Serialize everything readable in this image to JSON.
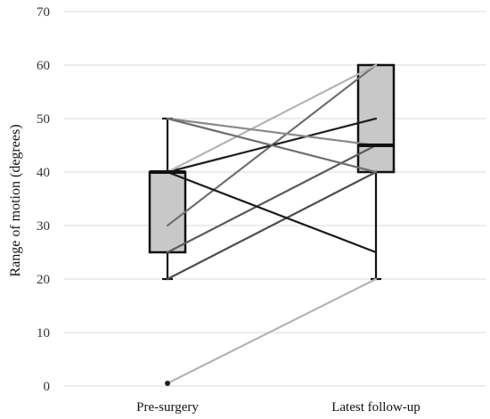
{
  "chart_data": {
    "type": "box",
    "title": "",
    "xlabel": "",
    "ylabel": "Range of motion (degrees)",
    "ylim": [
      0,
      70
    ],
    "yticks": [
      0,
      10,
      20,
      30,
      40,
      50,
      60,
      70
    ],
    "grid": true,
    "categories": [
      "Pre-surgery",
      "Latest follow-up"
    ],
    "boxes": [
      {
        "category": "Pre-surgery",
        "whisker_low": 20,
        "q1": 25,
        "median": 40,
        "q3": 40,
        "whisker_high": 50,
        "outliers": [
          0.5
        ]
      },
      {
        "category": "Latest follow-up",
        "whisker_low": 20,
        "q1": 40,
        "median": 45,
        "q3": 60,
        "whisker_high": 60,
        "outliers": []
      }
    ],
    "paired_lines": [
      {
        "pre": 0.5,
        "post": 20,
        "color": "#b4b4b4"
      },
      {
        "pre": 20,
        "post": 40,
        "color": "#4d4d4d"
      },
      {
        "pre": 25,
        "post": 45,
        "color": "#5a5a5a"
      },
      {
        "pre": 30,
        "post": 60,
        "color": "#707070"
      },
      {
        "pre": 40,
        "post": 25,
        "color": "#1a1a1a"
      },
      {
        "pre": 40,
        "post": 50,
        "color": "#1f1f1f"
      },
      {
        "pre": 40,
        "post": 60,
        "color": "#b4b4b4"
      },
      {
        "pre": 50,
        "post": 45,
        "color": "#8a8a8a"
      },
      {
        "pre": 50,
        "post": 40,
        "color": "#6e6e6e"
      }
    ],
    "colors": {
      "box_fill": "#c8c8c8",
      "box_stroke": "#111111",
      "grid": "#d9d9d9"
    }
  }
}
